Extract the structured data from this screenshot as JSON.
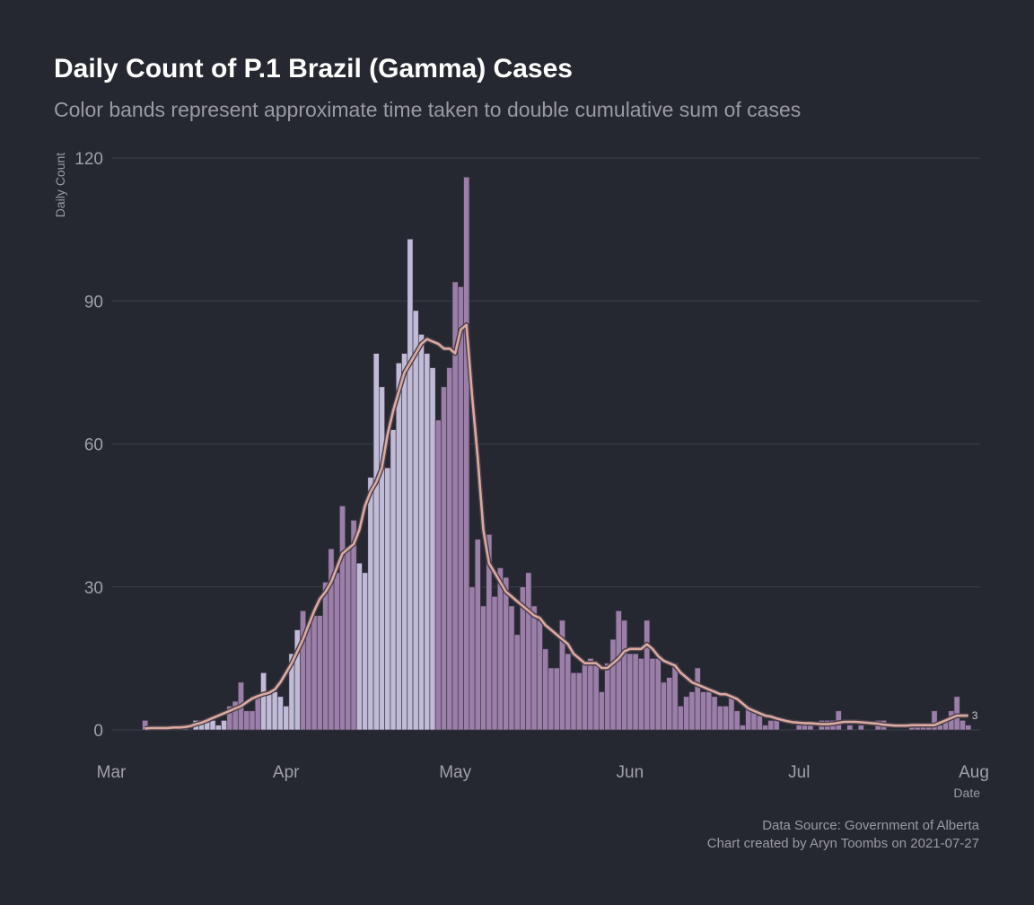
{
  "chart_data": {
    "type": "bar",
    "title": "Daily Count of P.1 Brazil (Gamma) Cases",
    "subtitle": "Color bands represent approximate time taken to double cumulative sum of cases",
    "ylabel": "Daily Count",
    "xlabel": "Date",
    "ylim": [
      0,
      120
    ],
    "y_ticks": [
      0,
      30,
      60,
      90,
      120
    ],
    "x_ticks": [
      {
        "date": "2021-03-01",
        "label": "Mar"
      },
      {
        "date": "2021-04-01",
        "label": "Apr"
      },
      {
        "date": "2021-05-01",
        "label": "May"
      },
      {
        "date": "2021-06-01",
        "label": "Jun"
      },
      {
        "date": "2021-07-01",
        "label": "Jul"
      },
      {
        "date": "2021-08-01",
        "label": "Aug"
      }
    ],
    "start_date": "2021-03-07",
    "values": [
      2,
      0,
      0,
      0,
      0,
      0,
      1,
      1,
      0,
      2,
      2,
      2,
      2,
      1,
      2,
      5,
      6,
      10,
      4,
      4,
      7,
      12,
      8,
      8,
      7,
      5,
      16,
      21,
      25,
      22,
      24,
      24,
      31,
      38,
      33,
      47,
      38,
      44,
      35,
      33,
      53,
      79,
      72,
      55,
      63,
      77,
      79,
      103,
      88,
      83,
      79,
      76,
      65,
      72,
      76,
      94,
      93,
      116,
      30,
      40,
      26,
      41,
      28,
      34,
      32,
      26,
      20,
      30,
      33,
      26,
      23,
      17,
      13,
      13,
      23,
      16,
      12,
      12,
      14,
      15,
      14,
      8,
      14,
      19,
      25,
      23,
      16,
      16,
      15,
      23,
      15,
      15,
      10,
      11,
      14,
      5,
      7,
      8,
      13,
      8,
      8,
      7,
      5,
      5,
      7,
      4,
      1,
      5,
      4,
      3,
      1,
      2,
      2,
      0,
      0,
      0,
      1,
      1,
      1,
      0,
      2,
      2,
      2,
      4,
      0,
      1,
      0,
      1,
      0,
      0,
      2,
      2,
      0,
      0,
      0,
      0,
      1,
      1,
      1,
      1,
      4,
      1,
      2,
      4,
      7,
      2,
      1
    ],
    "series": [
      {
        "name": "doubling-bands",
        "colors": [
          "#9b7fa9",
          "#c0bcd8",
          "#9b7fa9",
          "#c0bcd8",
          "#9b7fa9",
          "#c0bcd8",
          "#9b7fa9"
        ],
        "band_starts": [
          "2021-03-07",
          "2021-03-14",
          "2021-03-22",
          "2021-03-28",
          "2021-04-04",
          "2021-04-14",
          "2021-04-28"
        ]
      },
      {
        "name": "7-day average",
        "color": "#dcaaa1",
        "values": [
          0.3,
          0.4,
          0.4,
          0.4,
          0.4,
          0.5,
          0.5,
          0.6,
          0.8,
          1.2,
          1.5,
          2,
          2.5,
          3,
          3.5,
          4,
          4.5,
          5,
          5.8,
          6.6,
          7.1,
          7.5,
          7.8,
          8.5,
          10,
          12,
          14,
          16.5,
          19,
          22,
          25,
          27.5,
          29,
          31,
          34,
          37,
          38,
          39,
          42,
          47,
          50,
          52,
          55,
          62,
          67,
          71,
          75,
          77,
          79,
          81,
          82,
          81.5,
          81,
          80,
          80,
          79,
          84,
          85,
          70,
          57,
          42,
          35,
          33,
          31,
          29,
          28,
          27,
          26,
          25,
          24,
          23.5,
          22,
          21,
          20,
          19,
          18,
          16,
          15,
          14,
          14,
          14,
          13,
          13,
          14,
          15,
          16.5,
          17,
          17,
          17,
          18,
          17,
          15.5,
          14.5,
          14,
          13.5,
          12,
          11,
          10,
          9.5,
          9,
          8.5,
          8,
          7.5,
          7.5,
          7,
          6.5,
          5.5,
          4.5,
          4,
          3.5,
          3,
          2.8,
          2.4,
          2.1,
          1.8,
          1.6,
          1.5,
          1.4,
          1.4,
          1.3,
          1.2,
          1.2,
          1.3,
          1.5,
          1.7,
          1.7,
          1.7,
          1.6,
          1.5,
          1.4,
          1.3,
          1.1,
          1,
          0.9,
          0.9,
          0.9,
          1,
          1,
          1,
          1,
          1,
          1.5,
          2,
          2.5,
          3,
          3,
          3
        ]
      }
    ],
    "end_label": "3",
    "grid": true,
    "legend": "none"
  },
  "caption": {
    "line1": "Data Source: Government of Alberta",
    "line2": "Chart created by Aryn Toombs on 2021-07-27"
  },
  "colors": {
    "background": "#252830",
    "grid": "#3c3f48",
    "bar_edge": "#3f3547"
  }
}
